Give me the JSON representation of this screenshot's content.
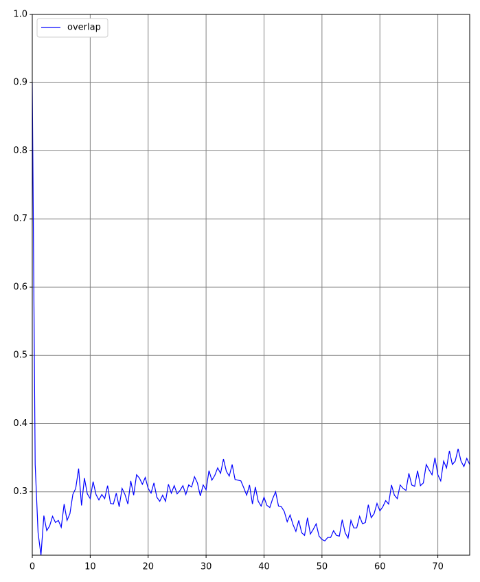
{
  "chart_data": {
    "type": "line",
    "x": [
      0,
      0.5,
      1,
      1.5,
      2,
      2.5,
      3,
      3.5,
      4,
      4.5,
      5,
      5.5,
      6,
      6.5,
      7,
      7.5,
      8,
      8.5,
      9,
      9.5,
      10,
      10.5,
      11,
      11.5,
      12,
      12.5,
      13,
      13.5,
      14,
      14.5,
      15,
      15.5,
      16,
      16.5,
      17,
      17.5,
      18,
      18.5,
      19,
      19.5,
      20,
      20.5,
      21,
      21.5,
      22,
      22.5,
      23,
      23.5,
      24,
      24.5,
      25,
      25.5,
      26,
      26.5,
      27,
      27.5,
      28,
      28.5,
      29,
      29.5,
      30,
      30.5,
      31,
      31.5,
      32,
      32.5,
      33,
      33.5,
      34,
      34.5,
      35,
      35.5,
      36,
      36.5,
      37,
      37.5,
      38,
      38.5,
      39,
      39.5,
      40,
      40.5,
      41,
      41.5,
      42,
      42.5,
      43,
      43.5,
      44,
      44.5,
      45,
      45.5,
      46,
      46.5,
      47,
      47.5,
      48,
      48.5,
      49,
      49.5,
      50,
      50.5,
      51,
      51.5,
      52,
      52.5,
      53,
      53.5,
      54,
      54.5,
      55,
      55.5,
      56,
      56.5,
      57,
      57.5,
      58,
      58.5,
      59,
      59.5,
      60,
      60.5,
      61,
      61.5,
      62,
      62.5,
      63,
      63.5,
      64,
      64.5,
      65,
      65.5,
      66,
      66.5,
      67,
      67.5,
      68,
      68.5,
      69,
      69.5,
      70,
      70.5,
      71,
      71.5,
      72,
      72.5,
      73,
      73.5,
      74,
      74.5,
      75,
      75.5
    ],
    "series": [
      {
        "name": "overlap",
        "color": "#0000ff",
        "values": [
          0.9,
          0.34,
          0.24,
          0.207,
          0.265,
          0.243,
          0.25,
          0.264,
          0.255,
          0.258,
          0.248,
          0.282,
          0.258,
          0.268,
          0.296,
          0.305,
          0.334,
          0.28,
          0.32,
          0.297,
          0.29,
          0.315,
          0.296,
          0.288,
          0.296,
          0.29,
          0.309,
          0.283,
          0.282,
          0.298,
          0.278,
          0.305,
          0.296,
          0.282,
          0.316,
          0.295,
          0.325,
          0.32,
          0.311,
          0.321,
          0.305,
          0.298,
          0.313,
          0.292,
          0.286,
          0.295,
          0.286,
          0.311,
          0.298,
          0.309,
          0.297,
          0.302,
          0.309,
          0.296,
          0.31,
          0.307,
          0.322,
          0.313,
          0.294,
          0.31,
          0.303,
          0.331,
          0.317,
          0.324,
          0.335,
          0.327,
          0.348,
          0.33,
          0.323,
          0.34,
          0.318,
          0.317,
          0.316,
          0.306,
          0.295,
          0.31,
          0.282,
          0.307,
          0.286,
          0.279,
          0.292,
          0.28,
          0.277,
          0.29,
          0.3,
          0.279,
          0.278,
          0.271,
          0.256,
          0.266,
          0.252,
          0.242,
          0.258,
          0.24,
          0.236,
          0.262,
          0.238,
          0.245,
          0.253,
          0.235,
          0.23,
          0.228,
          0.233,
          0.233,
          0.243,
          0.236,
          0.235,
          0.259,
          0.24,
          0.232,
          0.258,
          0.247,
          0.247,
          0.264,
          0.253,
          0.255,
          0.281,
          0.262,
          0.268,
          0.283,
          0.272,
          0.278,
          0.287,
          0.282,
          0.31,
          0.295,
          0.29,
          0.31,
          0.305,
          0.302,
          0.327,
          0.31,
          0.308,
          0.331,
          0.309,
          0.313,
          0.34,
          0.332,
          0.325,
          0.35,
          0.325,
          0.316,
          0.345,
          0.335,
          0.36,
          0.34,
          0.345,
          0.363,
          0.345,
          0.337,
          0.349,
          0.34
        ]
      }
    ],
    "xlim": [
      0,
      75.5
    ],
    "ylim": [
      0.207,
      1
    ],
    "xticks": [
      0,
      10,
      20,
      30,
      40,
      50,
      60,
      70
    ],
    "yticks": [
      0.3,
      0.4,
      0.5,
      0.6,
      0.7,
      0.8,
      0.9,
      {
        "value": 1,
        "label": "1.0"
      }
    ],
    "grid": true,
    "grid_color": "#808080",
    "legend": "upper left"
  }
}
